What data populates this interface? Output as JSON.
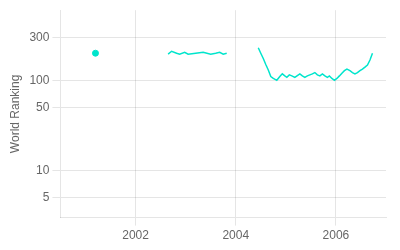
{
  "chart_data": {
    "type": "line",
    "ylabel": "World Ranking",
    "log": "y",
    "grid": true,
    "xlim": [
      2000.5,
      2007.0
    ],
    "xticks": [
      2002,
      2004,
      2006
    ],
    "ylim": [
      3,
      600
    ],
    "yticks": [
      5,
      10,
      50,
      100,
      300
    ],
    "series": [
      {
        "type": "scatter",
        "marker": "o",
        "color": "#00e5cc",
        "x": [
          2001.2
        ],
        "values": [
          200
        ]
      },
      {
        "type": "line",
        "color": "#00e5cc",
        "x": [
          2002.65,
          2002.72,
          2002.82,
          2002.88,
          2002.98,
          2003.05,
          2003.2,
          2003.35,
          2003.5,
          2003.6,
          2003.68,
          2003.75,
          2003.82
        ],
        "values": [
          195,
          210,
          200,
          195,
          205,
          195,
          200,
          205,
          195,
          200,
          205,
          195,
          200
        ]
      },
      {
        "type": "line",
        "color": "#00e5cc",
        "x": [
          2004.45,
          2004.5,
          2004.55,
          2004.6,
          2004.65,
          2004.7,
          2004.75,
          2004.82,
          2004.88,
          2004.93,
          2004.98,
          2005.02,
          2005.07,
          2005.12,
          2005.18,
          2005.23,
          2005.28,
          2005.33,
          2005.38,
          2005.43,
          2005.48,
          2005.53,
          2005.58,
          2005.63,
          2005.68,
          2005.73,
          2005.78,
          2005.83,
          2005.87,
          2005.92,
          2005.97,
          2006.02,
          2006.07,
          2006.12,
          2006.17,
          2006.22,
          2006.28,
          2006.33,
          2006.38,
          2006.43,
          2006.48,
          2006.53,
          2006.58,
          2006.63,
          2006.68,
          2006.73
        ],
        "values": [
          230,
          200,
          175,
          150,
          130,
          110,
          105,
          100,
          110,
          118,
          112,
          108,
          115,
          112,
          108,
          113,
          118,
          112,
          108,
          112,
          115,
          118,
          122,
          115,
          112,
          118,
          112,
          108,
          112,
          105,
          100,
          105,
          112,
          120,
          128,
          133,
          128,
          122,
          118,
          122,
          128,
          133,
          140,
          148,
          168,
          200
        ]
      }
    ]
  }
}
